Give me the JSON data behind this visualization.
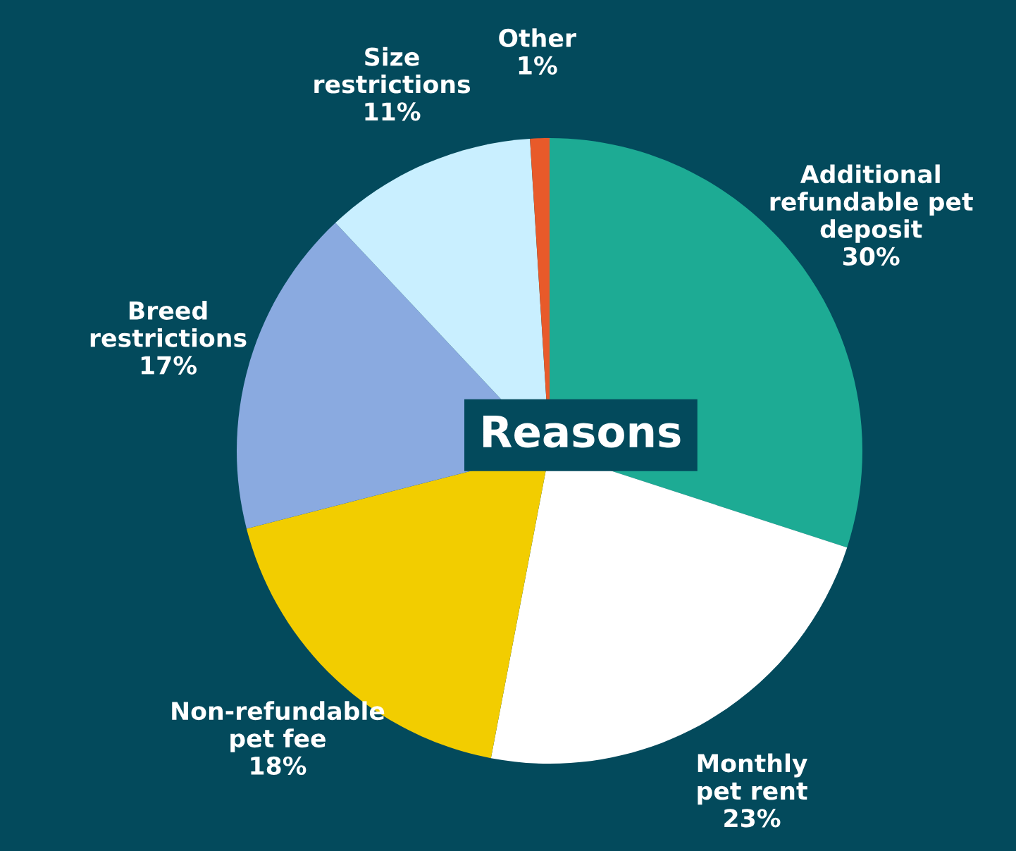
{
  "chart_data": {
    "type": "pie",
    "title": "Reasons",
    "categories": [
      "Additional\nrefundable pet\ndeposit",
      "Monthly\npet rent",
      "Non-refundable\npet fee",
      "Breed\nrestrictions",
      "Size\nrestrictions",
      "Other"
    ],
    "values": [
      30,
      23,
      18,
      17,
      11,
      1
    ],
    "value_labels": [
      "30%",
      "23%",
      "18%",
      "17%",
      "11%",
      "1%"
    ],
    "colors": [
      "#1dab94",
      "#ffffff",
      "#f2cd00",
      "#8aaae0",
      "#c9efff",
      "#e85a2a"
    ],
    "legend": false
  }
}
